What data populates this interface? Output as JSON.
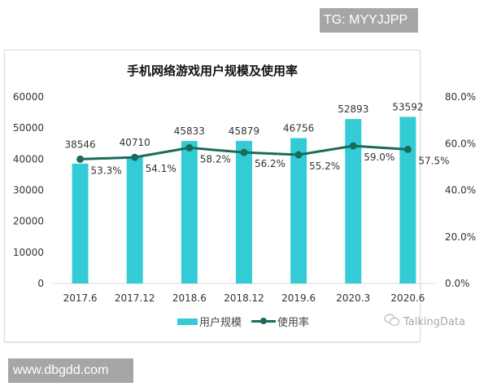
{
  "watermarks": {
    "top": "TG: MYYJJPP",
    "bottom": "www.dbgdd.com"
  },
  "chart": {
    "title": "手机网络游戏用户规模及使用率",
    "legend": {
      "bar_label": "用户规模",
      "line_label": "使用率"
    },
    "source": "TalkingData",
    "colors": {
      "bar": "#33ccd6",
      "line": "#1a6b5c",
      "frame": "#dcdcdc"
    }
  },
  "chart_data": {
    "type": "bar",
    "title": "手机网络游戏用户规模及使用率",
    "categories": [
      "2017.6",
      "2017.12",
      "2018.6",
      "2018.12",
      "2019.6",
      "2020.3",
      "2020.6"
    ],
    "series": [
      {
        "name": "用户规模",
        "type": "bar",
        "axis": "left",
        "values": [
          38546,
          40710,
          45833,
          45879,
          46756,
          52893,
          53592
        ]
      },
      {
        "name": "使用率",
        "type": "line",
        "axis": "right",
        "unit": "%",
        "values": [
          53.3,
          54.1,
          58.2,
          56.2,
          55.2,
          59.0,
          57.5
        ],
        "labels": [
          "53.3%",
          "54.1%",
          "58.2%",
          "56.2%",
          "55.2%",
          "59.0%",
          "57.5%"
        ]
      }
    ],
    "y_left": {
      "ticks": [
        "0",
        "10000",
        "20000",
        "30000",
        "40000",
        "50000",
        "60000"
      ],
      "range": [
        0,
        60000
      ]
    },
    "y_right": {
      "ticks": [
        "0.0%",
        "20.0%",
        "40.0%",
        "60.0%",
        "80.0%"
      ],
      "range": [
        0,
        80
      ]
    },
    "xlabel": "",
    "ylabel": "",
    "grid": false,
    "legend_position": "bottom",
    "annotation": "TalkingData"
  }
}
